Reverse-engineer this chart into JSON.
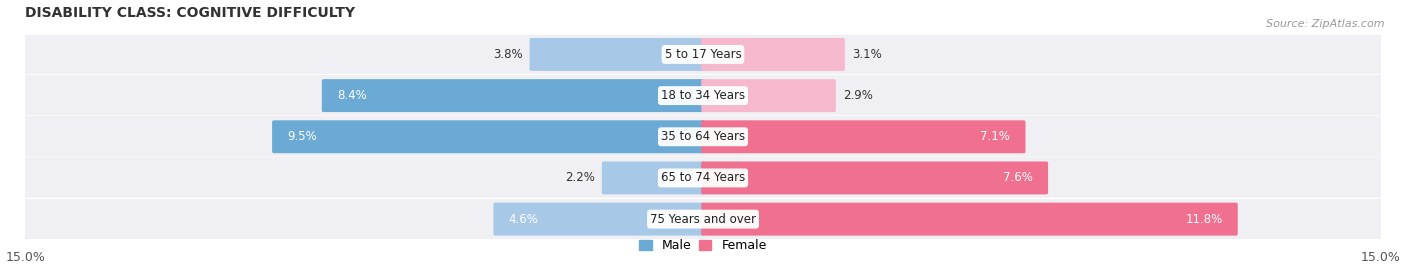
{
  "title": "DISABILITY CLASS: COGNITIVE DIFFICULTY",
  "source": "Source: ZipAtlas.com",
  "categories": [
    "5 to 17 Years",
    "18 to 34 Years",
    "35 to 64 Years",
    "65 to 74 Years",
    "75 Years and over"
  ],
  "male_values": [
    3.8,
    8.4,
    9.5,
    2.2,
    4.6
  ],
  "female_values": [
    3.1,
    2.9,
    7.1,
    7.6,
    11.8
  ],
  "male_color_light": "#a8c8e8",
  "male_color_dark": "#6aaad4",
  "female_color_light": "#f5b8cc",
  "female_color_dark": "#f07090",
  "row_bg": "#f0f0f4",
  "max_val": 15.0,
  "x_min": -15.0,
  "x_max": 15.0,
  "title_fontsize": 10,
  "source_fontsize": 8,
  "bar_label_fontsize": 8.5,
  "category_fontsize": 8.5,
  "axis_label_fontsize": 9,
  "legend_fontsize": 9
}
